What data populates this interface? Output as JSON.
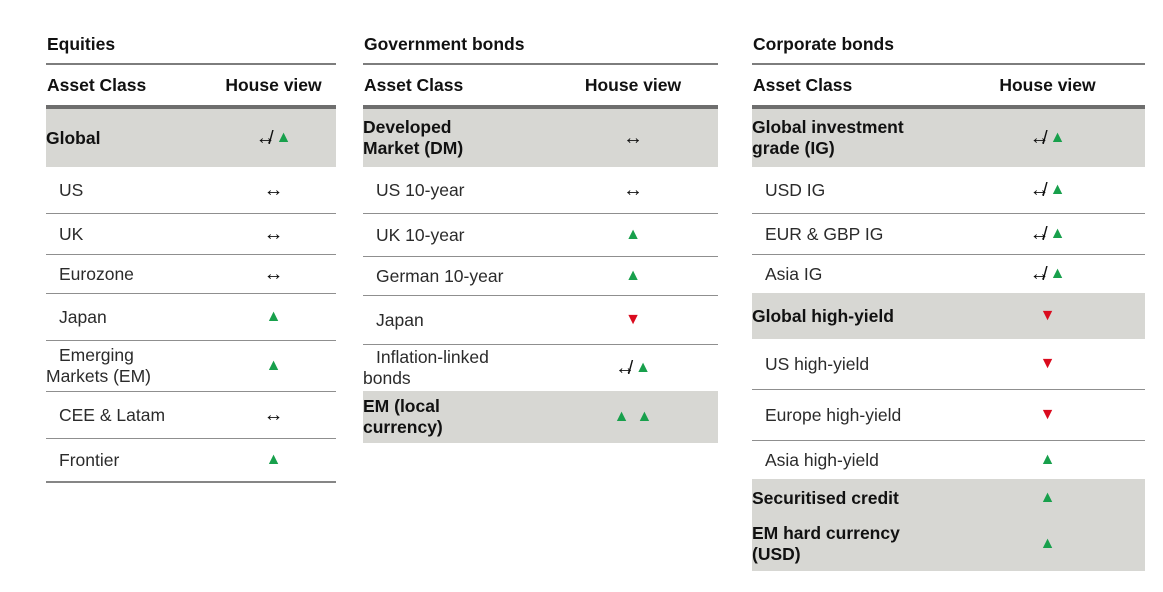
{
  "colors": {
    "up_green": "#18a04c",
    "down_red": "#da0b1e",
    "shaded_row_gray": "#d7d7d3"
  },
  "legend": {
    "up": "▲",
    "down": "▼",
    "neutral": "↔",
    "neutral_to_up": "↔/▲",
    "double_up": "▲▲"
  },
  "tables": [
    {
      "title": "Equities",
      "columns": {
        "asset_class": "Asset Class",
        "house_view": "House view"
      },
      "rows": [
        {
          "label": "Global",
          "view": "↔/▲",
          "shaded": true
        },
        {
          "label": "US",
          "view": "↔",
          "shaded": false
        },
        {
          "label": "UK",
          "view": "↔",
          "shaded": false
        },
        {
          "label": "Eurozone",
          "view": "↔",
          "shaded": false
        },
        {
          "label": "Japan",
          "view": "▲",
          "shaded": false
        },
        {
          "label": "Emerging\nMarkets (EM)",
          "view": "▲",
          "shaded": false
        },
        {
          "label": "CEE & Latam",
          "view": "↔",
          "shaded": false
        },
        {
          "label": "Frontier",
          "view": "▲",
          "shaded": false
        }
      ]
    },
    {
      "title": "Government bonds",
      "columns": {
        "asset_class": "Asset Class",
        "house_view": "House view"
      },
      "rows": [
        {
          "label": "Developed\nMarket (DM)",
          "view": "↔",
          "shaded": true
        },
        {
          "label": "US 10-year",
          "view": "↔",
          "shaded": false
        },
        {
          "label": "UK 10-year",
          "view": "▲",
          "shaded": false
        },
        {
          "label": "German 10-year",
          "view": "▲",
          "shaded": false
        },
        {
          "label": "Japan",
          "view": "▼",
          "shaded": false
        },
        {
          "label": "Inflation-linked\nbonds",
          "view": "↔/▲",
          "shaded": false
        },
        {
          "label": "EM (local\ncurrency)",
          "view": "▲▲",
          "shaded": true
        }
      ]
    },
    {
      "title": "Corporate bonds",
      "columns": {
        "asset_class": "Asset Class",
        "house_view": "House view"
      },
      "rows": [
        {
          "label": "Global investment\ngrade (IG)",
          "view": "↔/▲",
          "shaded": true
        },
        {
          "label": "USD IG",
          "view": "↔/▲",
          "shaded": false
        },
        {
          "label": "EUR & GBP IG",
          "view": "↔/▲",
          "shaded": false
        },
        {
          "label": "Asia IG",
          "view": "↔/▲",
          "shaded": false
        },
        {
          "label": "Global high-yield",
          "view": "▼",
          "shaded": true
        },
        {
          "label": "US high-yield",
          "view": "▼",
          "shaded": false
        },
        {
          "label": "Europe high-yield",
          "view": "▼",
          "shaded": false
        },
        {
          "label": "Asia high-yield",
          "view": "▲",
          "shaded": false
        },
        {
          "label": "Securitised credit",
          "view": "▲",
          "shaded": true
        },
        {
          "label": "EM hard currency\n(USD)",
          "view": "▲",
          "shaded": true
        }
      ]
    }
  ]
}
